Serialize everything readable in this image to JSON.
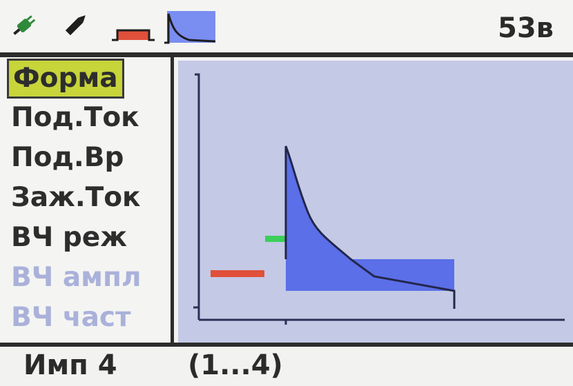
{
  "header": {
    "icons": [
      "plug-icon",
      "pencil-icon",
      "current-pulse-icon",
      "waveform-shape-icon"
    ],
    "voltage": "53в"
  },
  "menu": {
    "items": [
      {
        "label": "Форма",
        "state": "selected"
      },
      {
        "label": "Под.Ток",
        "state": "normal"
      },
      {
        "label": "Под.Вр",
        "state": "normal"
      },
      {
        "label": "Заж.Ток",
        "state": "normal"
      },
      {
        "label": "ВЧ реж",
        "state": "normal"
      },
      {
        "label": "ВЧ ампл",
        "state": "disabled"
      },
      {
        "label": "ВЧ част",
        "state": "disabled"
      }
    ]
  },
  "status": {
    "value": "Имп 4",
    "range": "(1...4)"
  },
  "colors": {
    "selected_bg": "#c7d43a",
    "plot_bg": "#c4c9e6",
    "waveform_fill": "#5a6fe8",
    "red_marker": "#e0503a",
    "green_marker": "#3ccf5a",
    "disabled_text": "#aab1da"
  }
}
